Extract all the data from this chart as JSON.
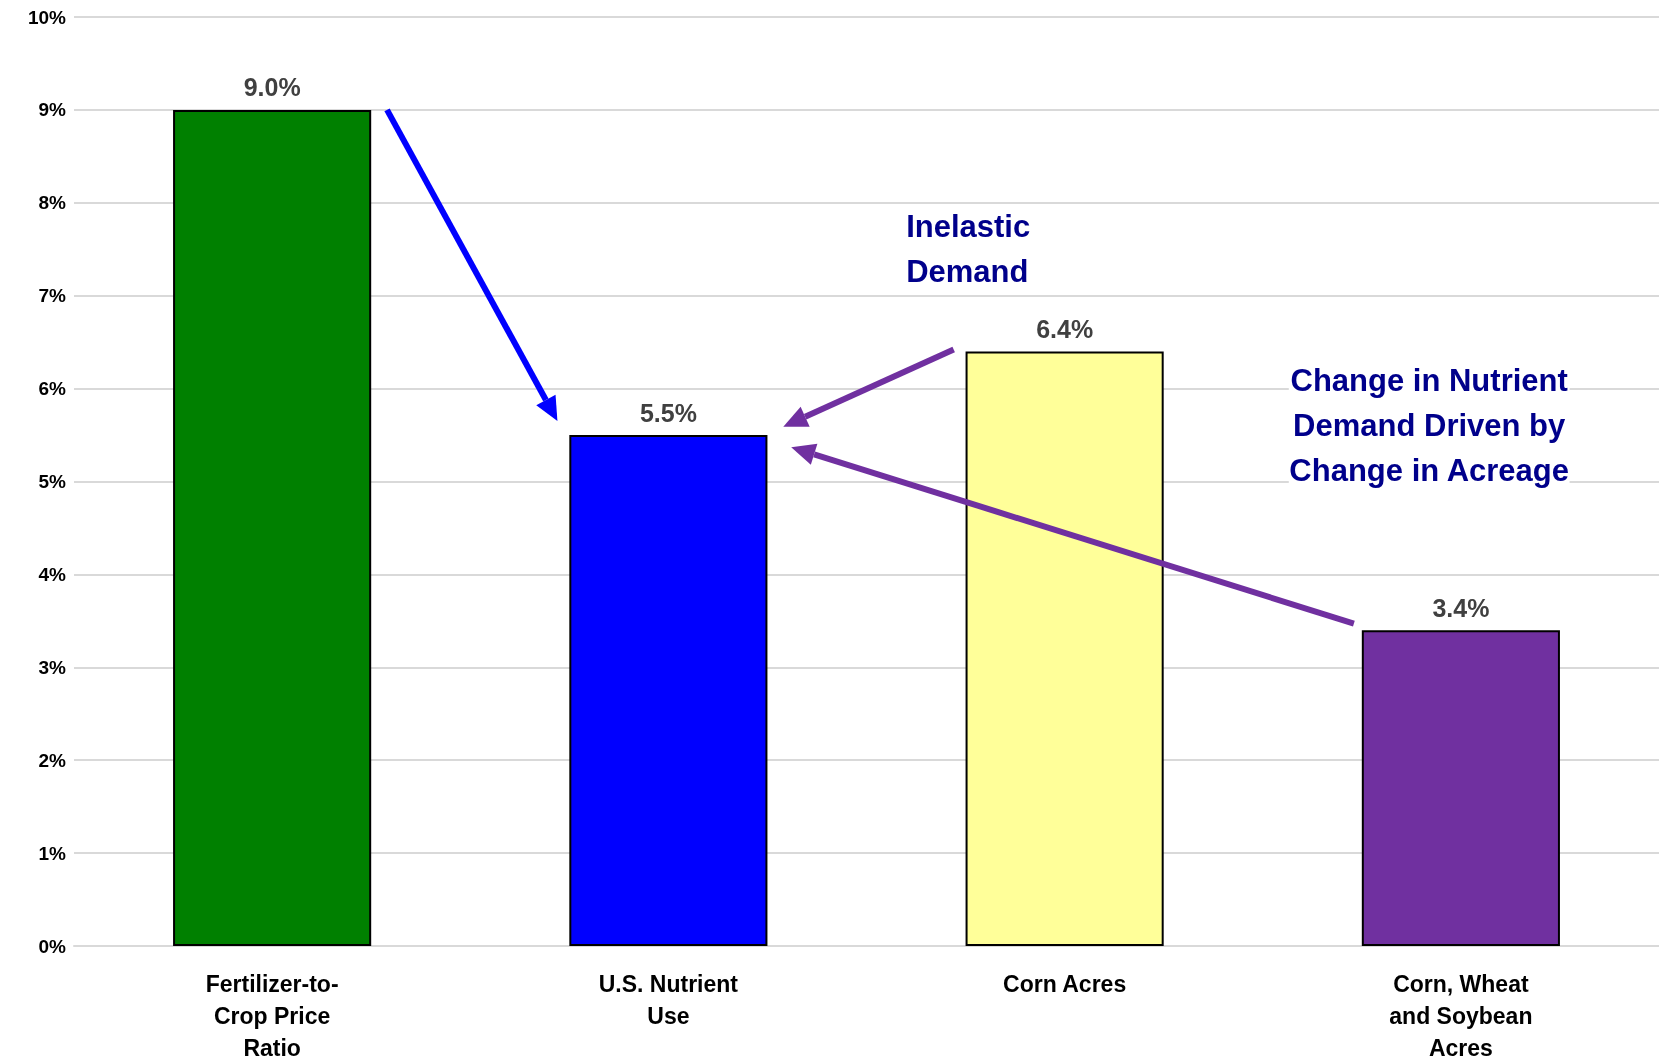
{
  "chart_data": {
    "type": "bar",
    "categories": [
      "Fertilizer-to-Crop Price Ratio",
      "U.S. Nutrient Use",
      "Corn Acres",
      "Corn, Wheat and Soybean Acres"
    ],
    "values": [
      9.0,
      5.5,
      6.4,
      3.4
    ],
    "colors": [
      "#008000",
      "#0000ff",
      "#ffff99",
      "#7030a0"
    ],
    "value_labels": [
      "9.0%",
      "5.5%",
      "6.4%",
      "3.4%"
    ],
    "ylim": [
      0,
      10
    ],
    "yticks": [
      {
        "value": 0,
        "label": "0%"
      },
      {
        "value": 1,
        "label": "1%"
      },
      {
        "value": 2,
        "label": "2%"
      },
      {
        "value": 3,
        "label": "3%"
      },
      {
        "value": 4,
        "label": "4%"
      },
      {
        "value": 5,
        "label": "5%"
      },
      {
        "value": 6,
        "label": "6%"
      },
      {
        "value": 7,
        "label": "7%"
      },
      {
        "value": 8,
        "label": "8%"
      },
      {
        "value": 9,
        "label": "9%"
      },
      {
        "value": 10,
        "label": "10%"
      }
    ],
    "grid": "y",
    "annotations": [
      "Inelastic Demand",
      "Change in Nutrient Demand Driven by Change in Acreage"
    ]
  }
}
